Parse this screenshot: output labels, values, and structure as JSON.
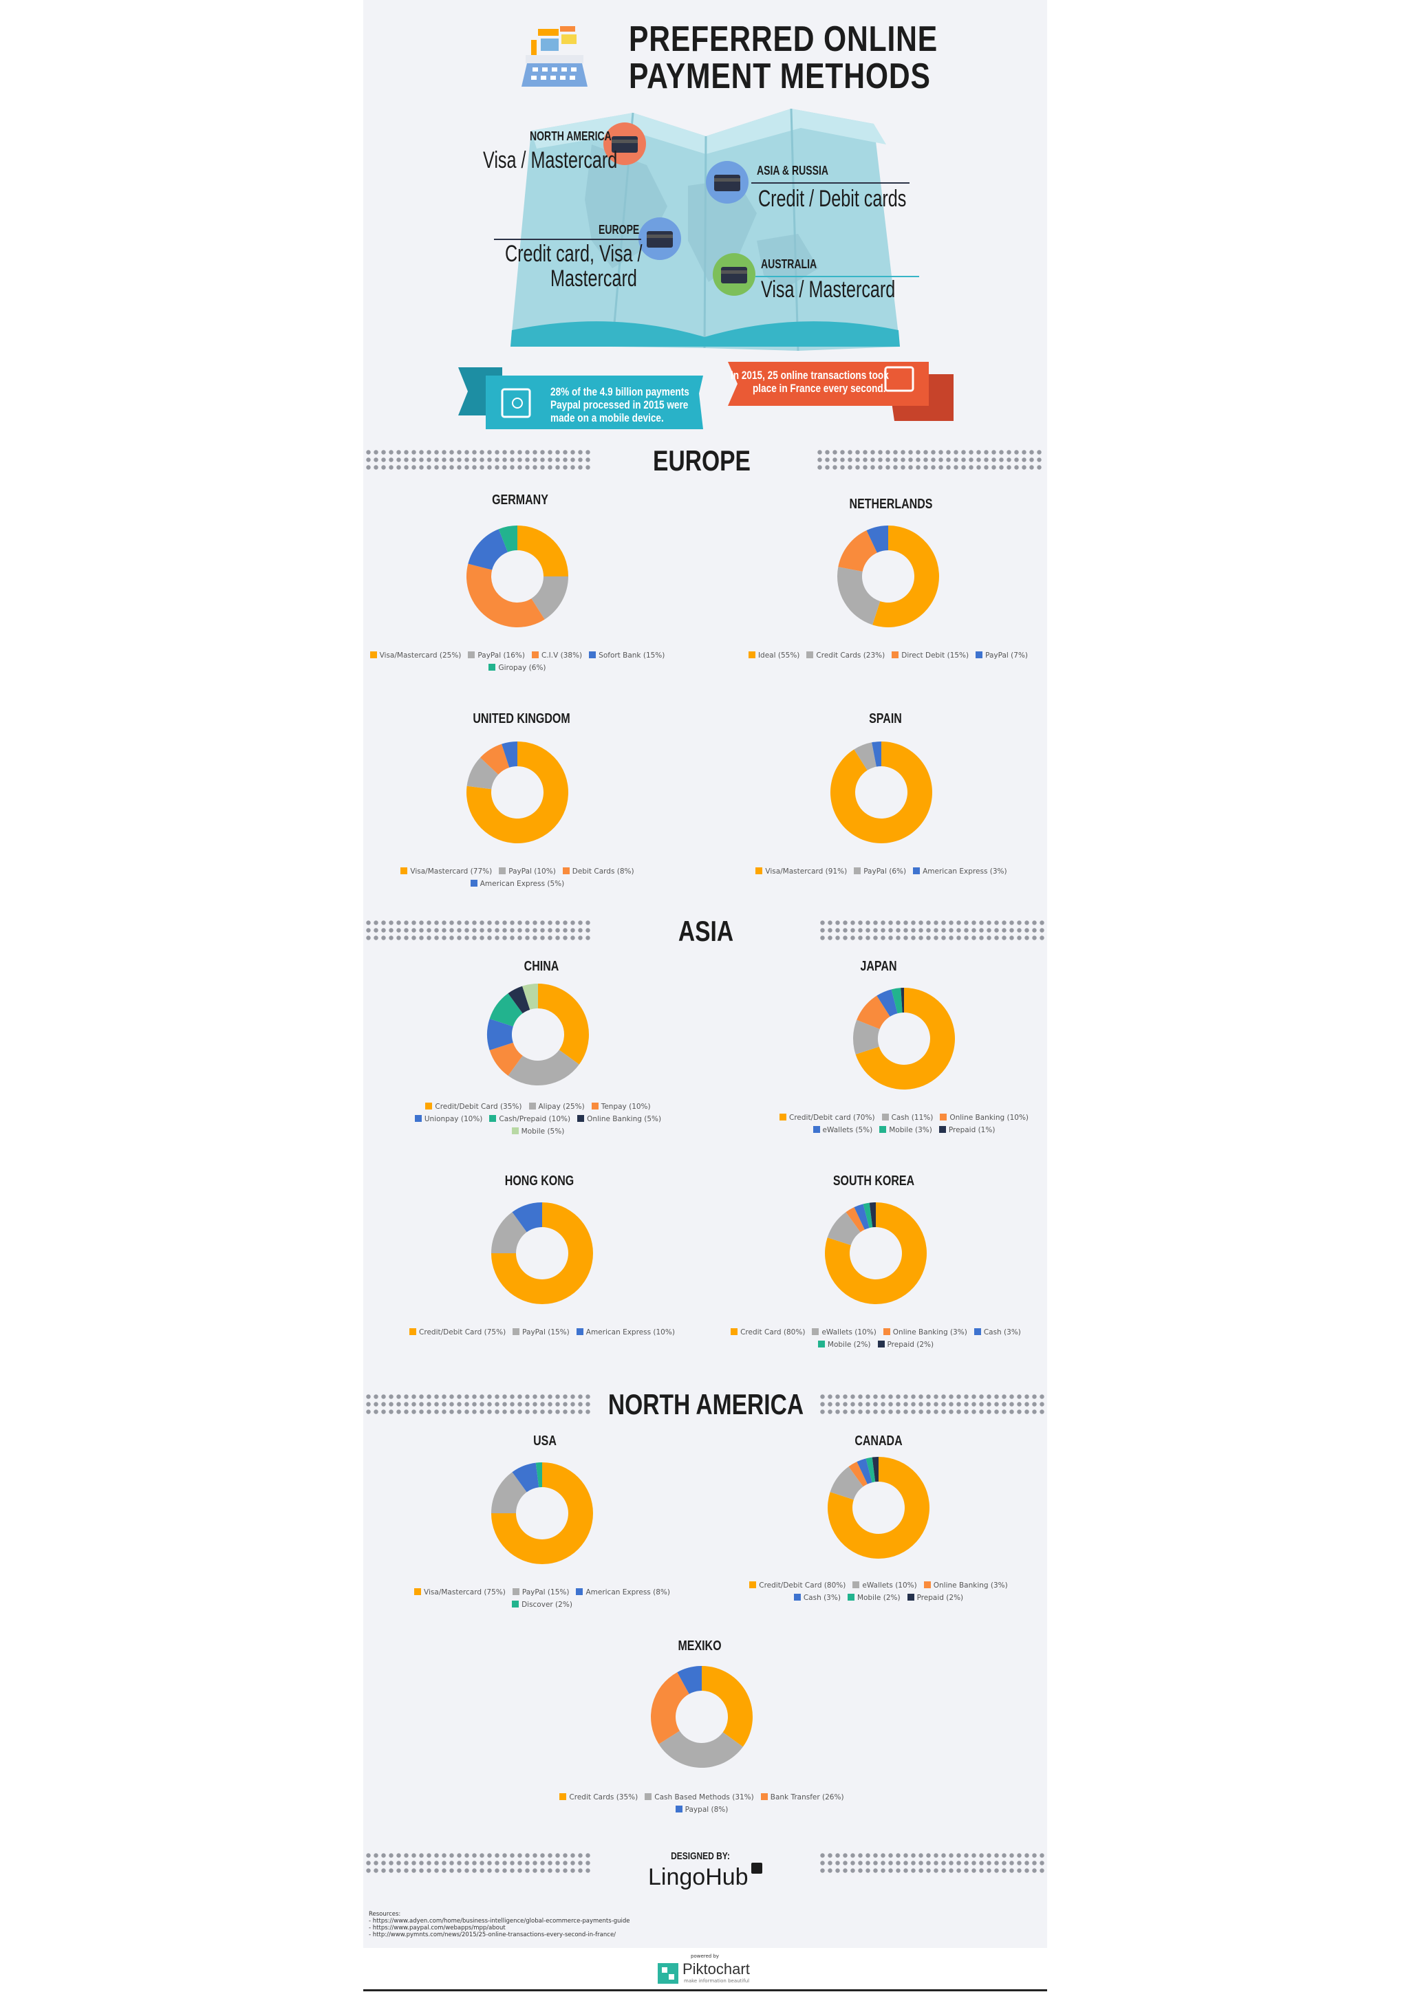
{
  "header": {
    "title_line1": "PREFERRED ONLINE",
    "title_line2": "PAYMENT METHODS"
  },
  "regions": [
    {
      "label": "NORTH AMERICA",
      "value": "Visa / Mastercard",
      "card_color": "#ef7b5a"
    },
    {
      "label": "ASIA & RUSSIA",
      "value": "Credit / Debit cards",
      "card_color": "#6f9fe0"
    },
    {
      "label": "EUROPE",
      "value_line1": "Credit card, Visa /",
      "value_line2": "Mastercard",
      "card_color": "#6f9fe0"
    },
    {
      "label": "AUSTRALIA",
      "value": "Visa / Mastercard",
      "card_color": "#7dbf5a"
    }
  ],
  "banners": {
    "left_line1": "28% of the 4.9 billion payments",
    "left_line2": "Paypal processed in 2015 were",
    "left_line3": "made on a mobile device.",
    "right_line1": "In 2015, 25 online transactions took",
    "right_line2": "place in France every second."
  },
  "sections": {
    "europe": "EUROPE",
    "asia": "ASIA",
    "north_america": "NORTH AMERICA"
  },
  "colors": {
    "yellow": "#fea500",
    "gray": "#adadad",
    "orange": "#f98b3c",
    "blue": "#3e73cf",
    "teal": "#22b38e",
    "navy": "#25324d",
    "lightgreen": "#b8d8a4"
  },
  "chart_data": [
    {
      "type": "pie",
      "key": "germany",
      "title": "GERMANY",
      "slices": [
        {
          "label": "Visa/Mastercard (25%)",
          "value": 25,
          "color": "yellow"
        },
        {
          "label": "PayPal (16%)",
          "value": 16,
          "color": "gray"
        },
        {
          "label": "C.I.V (38%)",
          "value": 38,
          "color": "orange"
        },
        {
          "label": "Sofort Bank (15%)",
          "value": 15,
          "color": "blue"
        },
        {
          "label": "Giropay (6%)",
          "value": 6,
          "color": "teal"
        }
      ]
    },
    {
      "type": "pie",
      "key": "netherlands",
      "title": "NETHERLANDS",
      "slices": [
        {
          "label": "Ideal (55%)",
          "value": 55,
          "color": "yellow"
        },
        {
          "label": "Credit Cards (23%)",
          "value": 23,
          "color": "gray"
        },
        {
          "label": "Direct Debit (15%)",
          "value": 15,
          "color": "orange"
        },
        {
          "label": "PayPal (7%)",
          "value": 7,
          "color": "blue"
        }
      ]
    },
    {
      "type": "pie",
      "key": "uk",
      "title": "UNITED KINGDOM",
      "slices": [
        {
          "label": "Visa/Mastercard (77%)",
          "value": 77,
          "color": "yellow"
        },
        {
          "label": "PayPal (10%)",
          "value": 10,
          "color": "gray"
        },
        {
          "label": "Debit Cards (8%)",
          "value": 8,
          "color": "orange"
        },
        {
          "label": "American Express (5%)",
          "value": 5,
          "color": "blue"
        }
      ]
    },
    {
      "type": "pie",
      "key": "spain",
      "title": "SPAIN",
      "slices": [
        {
          "label": "Visa/Mastercard (91%)",
          "value": 91,
          "color": "yellow"
        },
        {
          "label": "PayPal (6%)",
          "value": 6,
          "color": "gray"
        },
        {
          "label": "American Express (3%)",
          "value": 3,
          "color": "blue"
        }
      ]
    },
    {
      "type": "pie",
      "key": "china",
      "title": "CHINA",
      "slices": [
        {
          "label": "Credit/Debit Card (35%)",
          "value": 35,
          "color": "yellow"
        },
        {
          "label": "Alipay (25%)",
          "value": 25,
          "color": "gray"
        },
        {
          "label": "Tenpay (10%)",
          "value": 10,
          "color": "orange"
        },
        {
          "label": "Unionpay (10%)",
          "value": 10,
          "color": "blue"
        },
        {
          "label": "Cash/Prepaid (10%)",
          "value": 10,
          "color": "teal"
        },
        {
          "label": "Online Banking (5%)",
          "value": 5,
          "color": "navy"
        },
        {
          "label": "Mobile (5%)",
          "value": 5,
          "color": "lightgreen"
        }
      ]
    },
    {
      "type": "pie",
      "key": "japan",
      "title": "JAPAN",
      "slices": [
        {
          "label": "Credit/Debit card (70%)",
          "value": 70,
          "color": "yellow"
        },
        {
          "label": "Cash (11%)",
          "value": 11,
          "color": "gray"
        },
        {
          "label": "Online Banking (10%)",
          "value": 10,
          "color": "orange"
        },
        {
          "label": "eWallets (5%)",
          "value": 5,
          "color": "blue"
        },
        {
          "label": "Mobile (3%)",
          "value": 3,
          "color": "teal"
        },
        {
          "label": "Prepaid (1%)",
          "value": 1,
          "color": "navy"
        }
      ]
    },
    {
      "type": "pie",
      "key": "hongkong",
      "title": "HONG KONG",
      "slices": [
        {
          "label": "Credit/Debit Card (75%)",
          "value": 75,
          "color": "yellow"
        },
        {
          "label": "PayPal (15%)",
          "value": 15,
          "color": "gray"
        },
        {
          "label": "American Express (10%)",
          "value": 10,
          "color": "blue"
        }
      ]
    },
    {
      "type": "pie",
      "key": "southkorea",
      "title": "SOUTH KOREA",
      "slices": [
        {
          "label": "Credit Card (80%)",
          "value": 80,
          "color": "yellow"
        },
        {
          "label": "eWallets (10%)",
          "value": 10,
          "color": "gray"
        },
        {
          "label": "Online Banking (3%)",
          "value": 3,
          "color": "orange"
        },
        {
          "label": "Cash (3%)",
          "value": 3,
          "color": "blue"
        },
        {
          "label": "Mobile (2%)",
          "value": 2,
          "color": "teal"
        },
        {
          "label": "Prepaid (2%)",
          "value": 2,
          "color": "navy"
        }
      ]
    },
    {
      "type": "pie",
      "key": "usa",
      "title": "USA",
      "slices": [
        {
          "label": "Visa/Mastercard (75%)",
          "value": 75,
          "color": "yellow"
        },
        {
          "label": "PayPal (15%)",
          "value": 15,
          "color": "gray"
        },
        {
          "label": "American Express (8%)",
          "value": 8,
          "color": "blue"
        },
        {
          "label": "Discover (2%)",
          "value": 2,
          "color": "teal"
        }
      ]
    },
    {
      "type": "pie",
      "key": "canada",
      "title": "CANADA",
      "slices": [
        {
          "label": "Credit/Debit Card (80%)",
          "value": 80,
          "color": "yellow"
        },
        {
          "label": "eWallets (10%)",
          "value": 10,
          "color": "gray"
        },
        {
          "label": "Online Banking (3%)",
          "value": 3,
          "color": "orange"
        },
        {
          "label": "Cash (3%)",
          "value": 3,
          "color": "blue"
        },
        {
          "label": "Mobile (2%)",
          "value": 2,
          "color": "teal"
        },
        {
          "label": "Prepaid (2%)",
          "value": 2,
          "color": "navy"
        }
      ]
    },
    {
      "type": "pie",
      "key": "mexiko",
      "title": "MEXIKO",
      "slices": [
        {
          "label": "Credit Cards (35%)",
          "value": 35,
          "color": "yellow"
        },
        {
          "label": "Cash Based Methods (31%)",
          "value": 31,
          "color": "gray"
        },
        {
          "label": "Bank Transfer (26%)",
          "value": 26,
          "color": "orange"
        },
        {
          "label": "Paypal (8%)",
          "value": 8,
          "color": "blue"
        }
      ]
    }
  ],
  "footer": {
    "designed_by": "DESIGNED BY:",
    "brand": "LingoHub",
    "resources_title": "Resources:",
    "resources": [
      "- https://www.adyen.com/home/business-intelligence/global-ecommerce-payments-guide",
      "- https://www.paypal.com/webapps/mpp/about",
      "- http://www.pymnts.com/news/2015/25-online-transactions-every-second-in-france/"
    ],
    "powered_by": "powered by",
    "piktochart": "Piktochart",
    "tagline": "make information beautiful"
  }
}
